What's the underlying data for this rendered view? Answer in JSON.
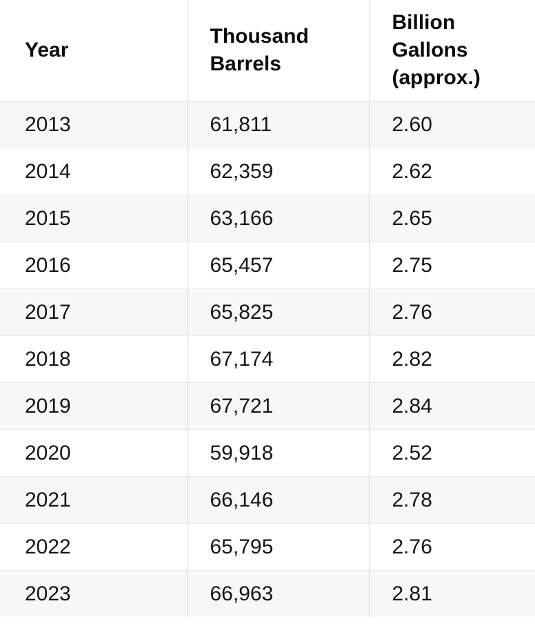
{
  "chart_data": {
    "type": "table",
    "columns": [
      "Year",
      "Thousand Barrels",
      "Billion Gallons (approx.)"
    ],
    "rows": [
      [
        "2013",
        "61,811",
        "2.60"
      ],
      [
        "2014",
        "62,359",
        "2.62"
      ],
      [
        "2015",
        "63,166",
        "2.65"
      ],
      [
        "2016",
        "65,457",
        "2.75"
      ],
      [
        "2017",
        "65,825",
        "2.76"
      ],
      [
        "2018",
        "67,174",
        "2.82"
      ],
      [
        "2019",
        "67,721",
        "2.84"
      ],
      [
        "2020",
        "59,918",
        "2.52"
      ],
      [
        "2021",
        "66,146",
        "2.78"
      ],
      [
        "2022",
        "65,795",
        "2.76"
      ],
      [
        "2023",
        "66,963",
        "2.81"
      ]
    ],
    "layout": {
      "zebra_striping": "odd data rows shaded",
      "grid": "vertical column dividers and horizontal row separators",
      "header_position": "top"
    }
  },
  "colors": {
    "background": "#ffffff",
    "row_stripe": "#f7f7f7",
    "vertical_divider": "#d4d4d4",
    "horizontal_divider": "#e7e7e7",
    "text": "#151515"
  }
}
